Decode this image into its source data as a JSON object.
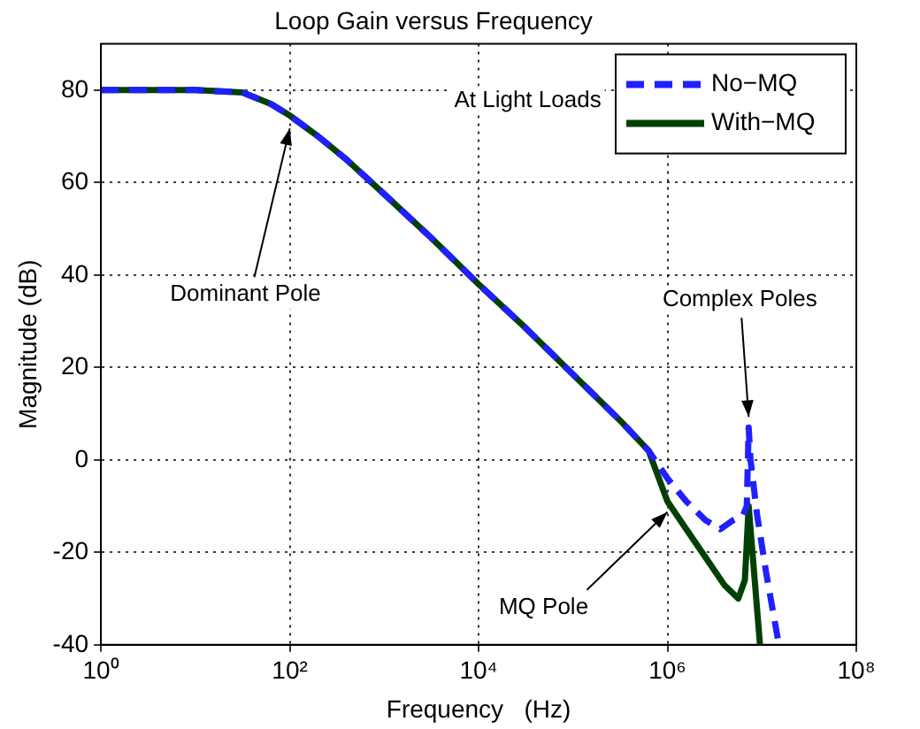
{
  "chart_data": {
    "type": "line",
    "title": "Loop Gain versus Frequency",
    "xlabel": "Frequency   (Hz)",
    "ylabel": "Magnitude (dB)",
    "log": "x",
    "xlim": [
      1,
      100000000
    ],
    "xticks": [
      {
        "value": 1,
        "label": "10⁰"
      },
      {
        "value": 100,
        "label": "10²"
      },
      {
        "value": 10000,
        "label": "10⁴"
      },
      {
        "value": 1000000,
        "label": "10⁶"
      },
      {
        "value": 100000000,
        "label": "10⁸"
      }
    ],
    "ylim": [
      -40,
      90
    ],
    "yticks": [
      -40,
      -20,
      0,
      20,
      40,
      60,
      80
    ],
    "grid": true,
    "legend": "top right",
    "marker": "none",
    "series": [
      {
        "name": "No−MQ",
        "color": "#1f1fff",
        "line_style": "dashed",
        "x": [
          1,
          10,
          31.62,
          63.1,
          100,
          199.5,
          398,
          1000,
          3162,
          10000,
          31620,
          100000,
          316200,
          631000,
          1000000,
          1585000,
          2512000,
          3631000,
          5012000,
          6310000,
          6918000,
          7244000,
          7586000,
          8913000,
          11220000,
          15140000
        ],
        "values": [
          80,
          80,
          79.5,
          77,
          74.5,
          70,
          65,
          57.5,
          48,
          38,
          28.5,
          18.5,
          8.5,
          2,
          -4,
          -9,
          -13,
          -15,
          -13,
          -12,
          -10,
          7,
          0,
          -12,
          -25,
          -40
        ]
      },
      {
        "name": "With−MQ",
        "color": "#034003",
        "line_style": "solid",
        "x": [
          1,
          10,
          31.62,
          63.1,
          100,
          199.5,
          398,
          1000,
          3162,
          10000,
          31620,
          100000,
          316200,
          631000,
          1000000,
          1585000,
          2512000,
          3981000,
          5623000,
          6607000,
          7244000,
          7943000,
          9550000
        ],
        "values": [
          80,
          80,
          79.5,
          77,
          74.5,
          70,
          65,
          57.5,
          48,
          38,
          28.5,
          18.5,
          8.5,
          2,
          -9,
          -15,
          -21,
          -27,
          -30,
          -26,
          -10,
          -20,
          -40
        ]
      }
    ],
    "annotations": [
      "At Light Loads",
      {
        "text": "Dominant Pole",
        "x": 100,
        "y": 74
      },
      {
        "text": "Complex Poles",
        "x": 7244000,
        "y": 7
      },
      {
        "text": "MQ Pole",
        "x": 1000000,
        "y": -9
      }
    ]
  }
}
